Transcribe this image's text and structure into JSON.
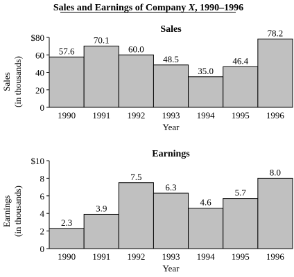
{
  "figure": {
    "title_prefix": "Sales and Earnings of Company ",
    "title_italic": "X",
    "title_suffix": ", 1990–1996"
  },
  "chart_data": [
    {
      "type": "bar",
      "title": "Sales",
      "xlabel": "Year",
      "ylabel": "Sales",
      "ylabel_unit": "(in thousands)",
      "categories": [
        "1990",
        "1991",
        "1992",
        "1993",
        "1994",
        "1995",
        "1996"
      ],
      "values": [
        57.6,
        70.1,
        60.0,
        48.5,
        35.0,
        46.4,
        78.2
      ],
      "value_labels": [
        "57.6",
        "70.1",
        "60.0",
        "48.5",
        "35.0",
        "46.4",
        "78.2"
      ],
      "ylim": [
        0,
        80
      ],
      "yticks": [
        0,
        20,
        40,
        60,
        80
      ],
      "ytick_labels": [
        "0",
        "20",
        "40",
        "60",
        "$80"
      ],
      "bar_color": "#c0c0c0",
      "grid": false
    },
    {
      "type": "bar",
      "title": "Earnings",
      "xlabel": "Year",
      "ylabel": "Earnings",
      "ylabel_unit": "(in thousands)",
      "categories": [
        "1990",
        "1991",
        "1992",
        "1993",
        "1994",
        "1995",
        "1996"
      ],
      "values": [
        2.3,
        3.9,
        7.5,
        6.3,
        4.6,
        5.7,
        8.0
      ],
      "value_labels": [
        "2.3",
        "3.9",
        "7.5",
        "6.3",
        "4.6",
        "5.7",
        "8.0"
      ],
      "ylim": [
        0,
        10
      ],
      "yticks": [
        0,
        2,
        4,
        6,
        8,
        10
      ],
      "ytick_labels": [
        "0",
        "2",
        "4",
        "6",
        "8",
        "$10"
      ],
      "bar_color": "#c0c0c0",
      "grid": false
    }
  ]
}
